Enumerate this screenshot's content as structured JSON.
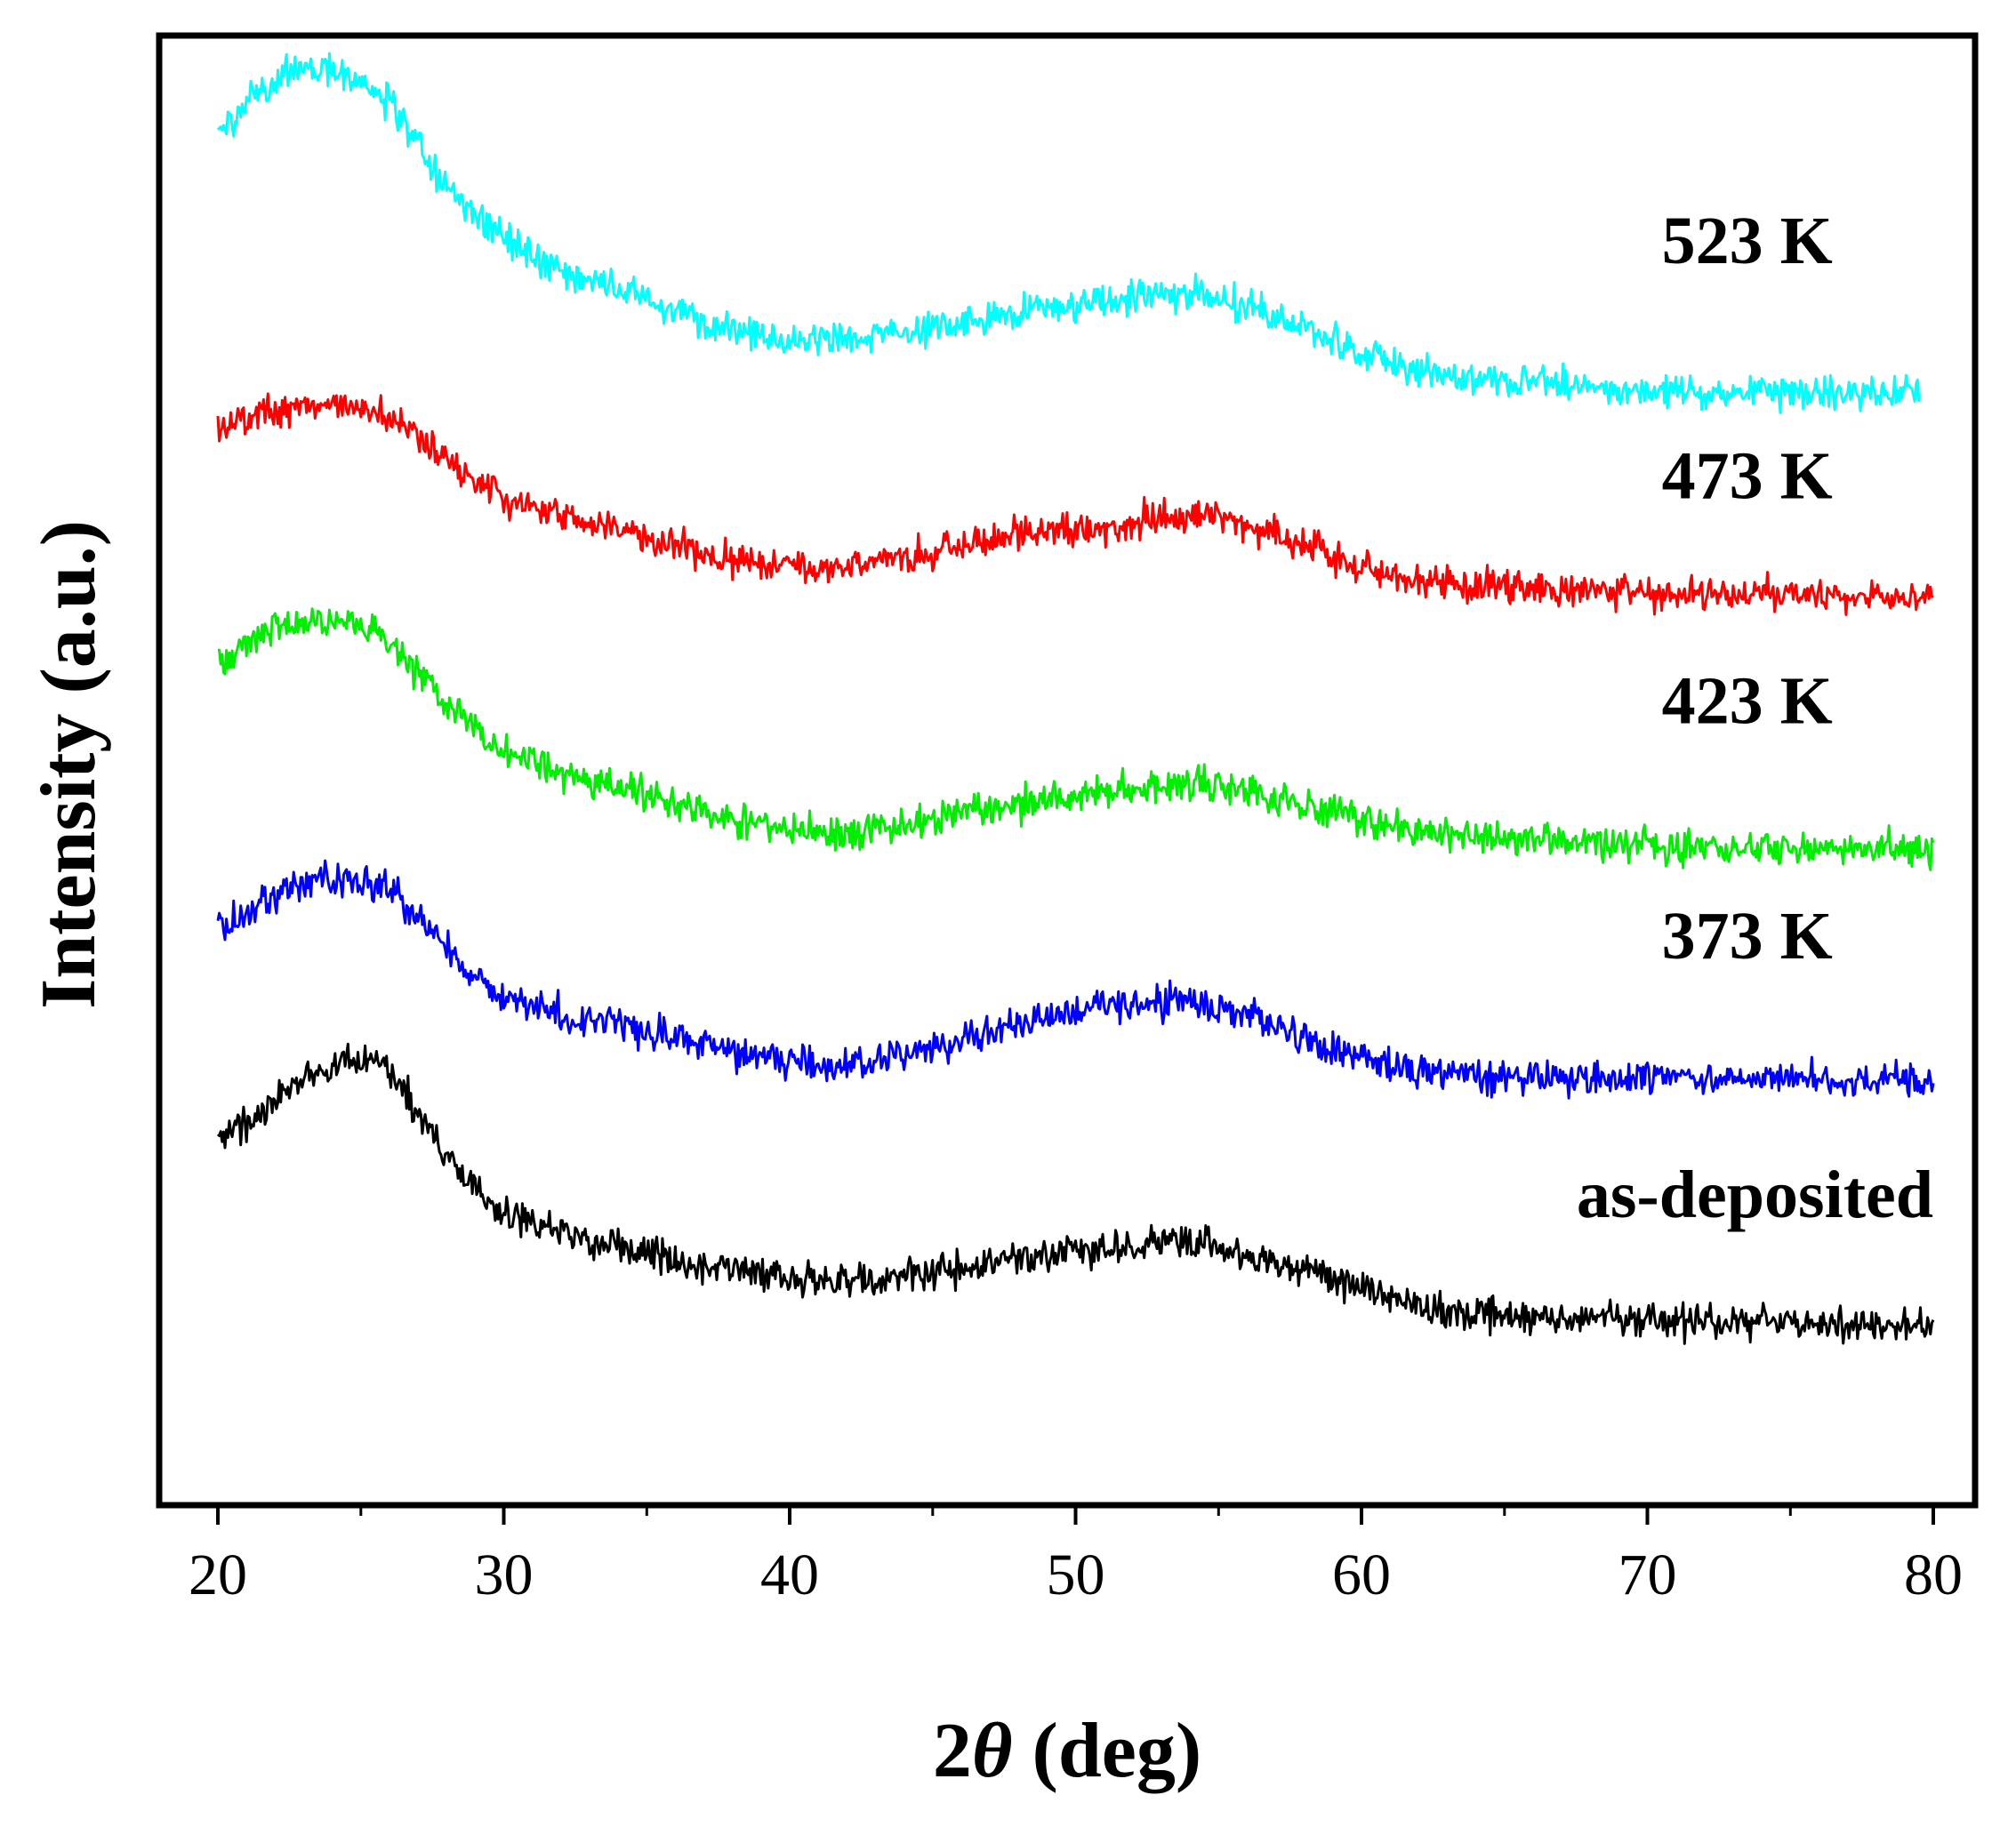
{
  "chart_data": {
    "type": "line",
    "title": "",
    "xlabel_prefix": "2",
    "xlabel_symbol": "θ",
    "xlabel_suffix": " (deg)",
    "ylabel": "Intensity (a.u.)",
    "xlim": [
      18,
      81
    ],
    "xticks": [
      20,
      30,
      40,
      50,
      60,
      70,
      80
    ],
    "xtick_labels": [
      "20",
      "30",
      "40",
      "50",
      "60",
      "70",
      "80"
    ],
    "yticks_shown": false,
    "grid": false,
    "legend": "inline labels at right",
    "ylim": [
      0,
      100
    ],
    "series": [
      {
        "name": "as-deposited",
        "color": "#000000",
        "x": [
          20,
          21,
          22,
          23,
          24,
          25,
          25.5,
          26,
          27,
          28,
          29,
          30,
          32,
          35,
          38,
          40,
          42,
          44,
          46,
          48,
          50,
          52,
          54,
          56,
          58,
          60,
          62,
          64,
          66,
          68,
          70,
          72,
          74,
          76,
          78,
          80
        ],
        "y": [
          25.2,
          25.9,
          27.6,
          29.0,
          29.8,
          30.4,
          30.5,
          29.5,
          26.6,
          23.8,
          21.5,
          19.9,
          18.4,
          17.1,
          15.9,
          15.6,
          15.3,
          15.4,
          16.1,
          16.9,
          17.2,
          17.6,
          17.9,
          17.2,
          16.2,
          14.8,
          13.6,
          13.0,
          12.8,
          12.6,
          12.5,
          12.4,
          12.4,
          12.3,
          12.3,
          12.3
        ],
        "label_x": 80,
        "label_y": 19.6
      },
      {
        "name": "373 K",
        "color": "#0000ff",
        "x": [
          20,
          21,
          22,
          23,
          24,
          25,
          26,
          27,
          28,
          29,
          30,
          32,
          35,
          38,
          40,
          42,
          44,
          46,
          48,
          50,
          52,
          54,
          56,
          58,
          60,
          62,
          64,
          66,
          68,
          70,
          72,
          74,
          76,
          78,
          80
        ],
        "y": [
          39.4,
          40.3,
          41.6,
          42.3,
          42.6,
          42.6,
          42.0,
          40.3,
          37.8,
          35.8,
          34.5,
          33.4,
          32.3,
          30.8,
          30.1,
          29.9,
          30.6,
          31.8,
          32.8,
          33.6,
          34.2,
          34.2,
          33.4,
          31.9,
          30.4,
          29.5,
          29.3,
          29.2,
          29.1,
          29.0,
          29.0,
          29.0,
          28.9,
          28.9,
          28.9
        ],
        "label_x": 70.5,
        "label_y": 37.2
      },
      {
        "name": "423 K",
        "color": "#00ee00",
        "x": [
          20,
          21,
          22,
          23,
          24,
          25,
          26,
          27,
          28,
          29,
          30,
          32,
          35,
          38,
          40,
          42,
          44,
          46,
          48,
          50,
          52,
          54,
          56,
          58,
          60,
          62,
          64,
          66,
          68,
          70,
          72,
          74,
          76,
          78,
          80
        ],
        "y": [
          57.5,
          58.7,
          59.7,
          60.1,
          60.2,
          59.8,
          58.8,
          56.9,
          54.6,
          52.8,
          51.1,
          49.7,
          48.3,
          46.6,
          46.0,
          45.8,
          46.2,
          47.1,
          47.7,
          48.3,
          49.0,
          49.2,
          48.8,
          47.6,
          46.7,
          45.9,
          45.5,
          45.2,
          45.0,
          44.9,
          44.8,
          44.7,
          44.6,
          44.6,
          44.6
        ],
        "label_x": 70.5,
        "label_y": 53.2
      },
      {
        "name": "473 K",
        "color": "#ff0000",
        "x": [
          20,
          21,
          22,
          23,
          24,
          25,
          26,
          27,
          28,
          29,
          30,
          32,
          35,
          38,
          40,
          42,
          44,
          46,
          48,
          50,
          52,
          54,
          55,
          56,
          58,
          60,
          62,
          64,
          66,
          68,
          70,
          72,
          74,
          76,
          78,
          80
        ],
        "y": [
          73.1,
          74.1,
          74.7,
          75.0,
          74.9,
          74.6,
          73.9,
          72.6,
          71.0,
          69.6,
          68.4,
          67.4,
          66.0,
          64.3,
          63.9,
          63.9,
          64.4,
          65.1,
          65.9,
          66.4,
          66.9,
          67.3,
          67.4,
          66.8,
          65.3,
          63.6,
          62.8,
          62.5,
          62.4,
          62.2,
          62.1,
          62.0,
          62.0,
          61.9,
          61.9,
          61.9
        ],
        "label_x": 70.5,
        "label_y": 68.5
      },
      {
        "name": "523 K",
        "color": "#00ffff",
        "x": [
          20,
          21,
          22,
          23,
          24,
          25,
          26,
          27,
          28,
          29,
          30,
          32,
          35,
          38,
          40,
          42,
          44,
          46,
          48,
          50,
          52,
          54,
          56,
          58,
          60,
          62,
          64,
          66,
          68,
          70,
          72,
          74,
          76,
          78,
          79.5
        ],
        "y": [
          93.4,
          95.3,
          97.1,
          97.7,
          97.8,
          97.0,
          95.4,
          92.5,
          89.7,
          87.8,
          86.2,
          84.1,
          82.0,
          80.0,
          79.3,
          79.3,
          79.9,
          80.3,
          81.1,
          81.6,
          82.2,
          82.6,
          81.6,
          80.0,
          78.4,
          77.3,
          76.7,
          76.3,
          76.1,
          75.9,
          75.8,
          75.8,
          75.7,
          75.7,
          75.6
        ],
        "label_x": 70.5,
        "label_y": 84.5
      }
    ]
  }
}
